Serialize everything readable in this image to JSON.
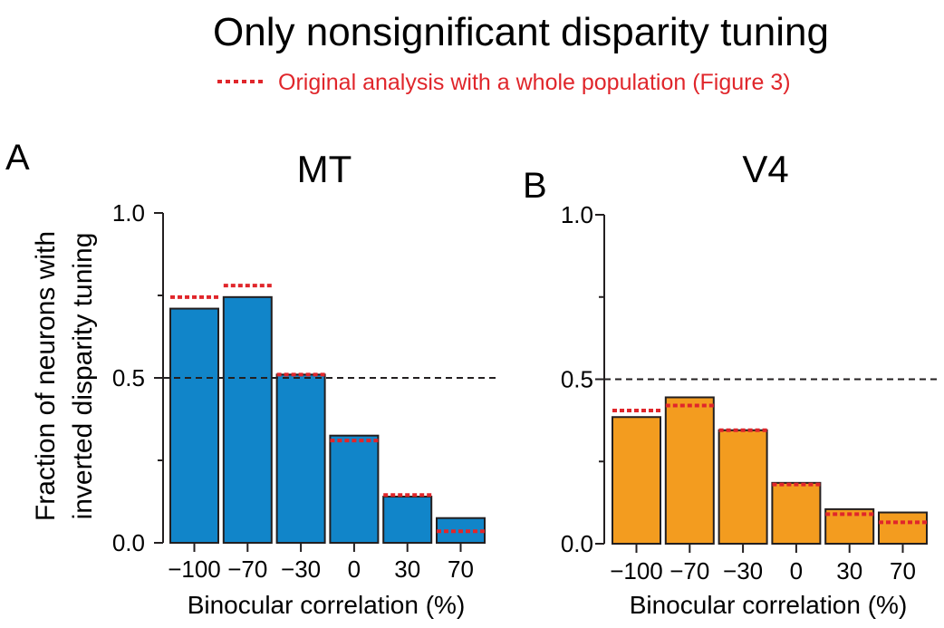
{
  "figure_title": "Only nonsignificant disparity tuning",
  "legend": {
    "label": "Original analysis with a whole population (Figure 3)",
    "color": "#e0262b"
  },
  "chart_data": [
    {
      "type": "bar",
      "panel": "A",
      "title": "MT",
      "ylabel_lines": [
        "Fraction of neurons with",
        "inverted disparity tuning"
      ],
      "xlabel": "Binocular correlation (%)",
      "categories": [
        "−100",
        "−70",
        "−30",
        "0",
        "30",
        "70"
      ],
      "yticks": [
        "0.0",
        "0.5",
        "1.0"
      ],
      "ylim": [
        0,
        1
      ],
      "reference_line": 0.5,
      "bar_color": "#1185c9",
      "series": [
        {
          "name": "Only nonsignificant disparity tuning",
          "values": [
            0.71,
            0.745,
            0.51,
            0.325,
            0.14,
            0.075
          ]
        },
        {
          "name": "Original analysis with a whole population (Figure 3)",
          "values": [
            0.745,
            0.78,
            0.51,
            0.31,
            0.145,
            0.035
          ]
        }
      ]
    },
    {
      "type": "bar",
      "panel": "B",
      "title": "V4",
      "ylabel_lines": [],
      "xlabel": "Binocular correlation (%)",
      "categories": [
        "−100",
        "−70",
        "−30",
        "0",
        "30",
        "70"
      ],
      "yticks": [
        "0.0",
        "0.5",
        "1.0"
      ],
      "ylim": [
        0,
        1
      ],
      "reference_line": 0.5,
      "bar_color": "#f39c1f",
      "series": [
        {
          "name": "Only nonsignificant disparity tuning",
          "values": [
            0.385,
            0.445,
            0.345,
            0.185,
            0.105,
            0.095
          ]
        },
        {
          "name": "Original analysis with a whole population (Figure 3)",
          "values": [
            0.405,
            0.42,
            0.345,
            0.18,
            0.09,
            0.065
          ]
        }
      ]
    }
  ]
}
